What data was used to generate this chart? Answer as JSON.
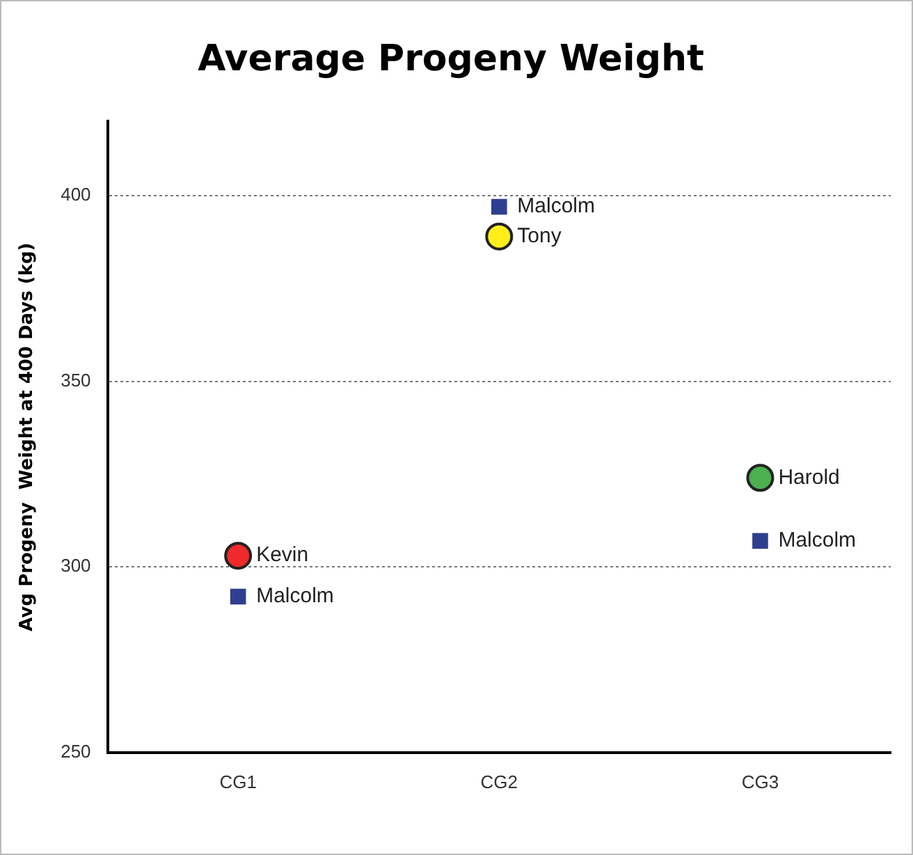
{
  "chart_data": {
    "type": "scatter",
    "title": "Average Progeny Weight",
    "ylabel": "Avg Progeny  Weight at 400 Days (kg)",
    "categories": [
      "CG1",
      "CG2",
      "CG3"
    ],
    "series": [
      {
        "name": "Malcolm",
        "color": "#2e3f8f",
        "marker": "square",
        "values": [
          292,
          397,
          307
        ]
      },
      {
        "name": "Kevin",
        "color": "#ee2a2a",
        "marker": "circle",
        "values": [
          303,
          null,
          null
        ]
      },
      {
        "name": "Tony",
        "color": "#ffee1a",
        "marker": "circle",
        "values": [
          null,
          389,
          null
        ]
      },
      {
        "name": "Harold",
        "color": "#4caf50",
        "marker": "circle",
        "values": [
          null,
          null,
          324
        ]
      }
    ],
    "ylim": [
      250,
      420
    ],
    "yticks": [
      250,
      300,
      350,
      400
    ],
    "grid": "y",
    "legend": false
  }
}
